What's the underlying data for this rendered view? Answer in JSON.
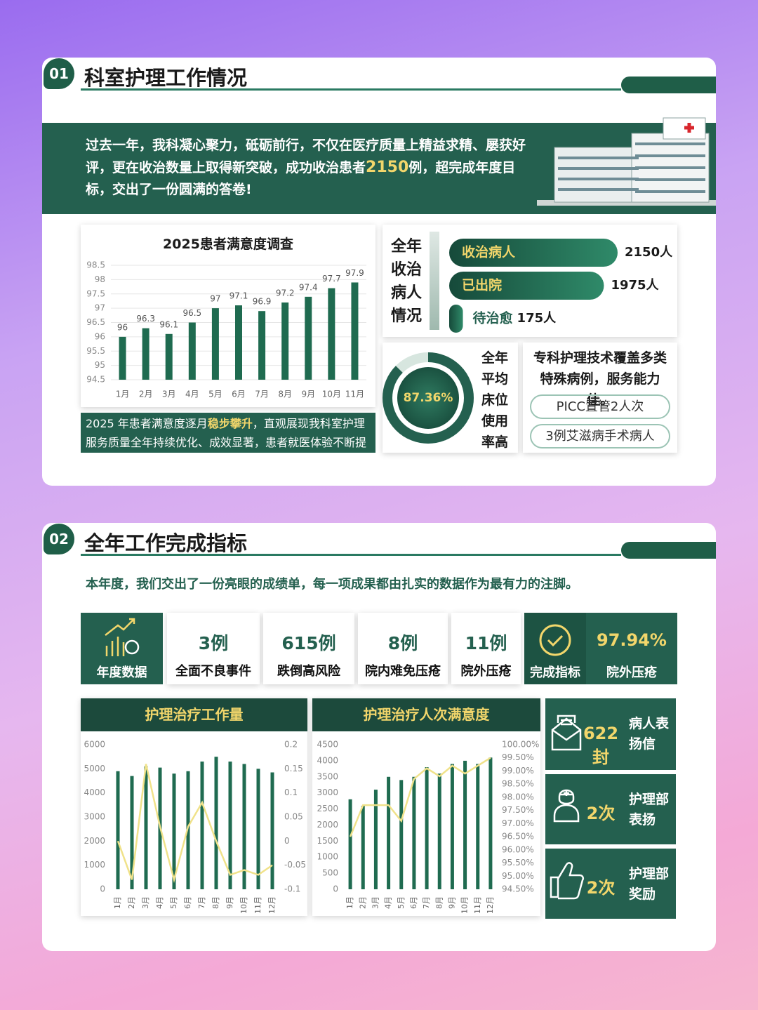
{
  "header1": {
    "badge": "01",
    "title": "科室护理工作情况"
  },
  "intro": {
    "before": "过去一年，我科凝心聚力，砥砺前行，不仅在医疗质量上精益求精、屡获好评，更在收治数量上取得新突破，成功收治患者",
    "highlight": "2150",
    "after": "例，超完成年度目标，交出了一份圆满的答卷!"
  },
  "satisfaction_note": {
    "before": "2025 年患者满意度逐月",
    "highlight": "稳步攀升",
    "after": "，直观展现我科室护理服务质量全年持续优化、成效显著，患者就医体验不断提升。"
  },
  "admissions": {
    "title": "全年收治病人情况",
    "labels": [
      "收治病人",
      "已出院",
      "待治愈"
    ],
    "values": [
      2150,
      1975,
      175
    ],
    "value_labels": [
      "2150人",
      "1975人",
      "175人"
    ]
  },
  "bed_usage": {
    "value": 87.36,
    "value_label": "87.36%",
    "text": "全年平均床位使用率高"
  },
  "specialty": {
    "text": "专科护理技术覆盖多类特殊病例，服务能力佳。",
    "items": [
      "PICC置管2人次",
      "3例艾滋病手术病人"
    ]
  },
  "header2": {
    "badge": "02",
    "title": "全年工作完成指标"
  },
  "summary": "本年度，我们交出了一份亮眼的成绩单，每一项成果都由扎实的数据作为最有力的注脚。",
  "annual": {
    "label": "年度数据",
    "items": [
      {
        "value": "3例",
        "label": "全面不良事件"
      },
      {
        "value": "615例",
        "label": "跌倒高风险"
      },
      {
        "value": "8例",
        "label": "院内难免压疮"
      },
      {
        "value": "11例",
        "label": "院外压疮"
      }
    ]
  },
  "completion": {
    "label": "完成指标",
    "value": "97.94%",
    "item": "院外压疮"
  },
  "awards": [
    {
      "value": "622封",
      "label": "病人表扬信"
    },
    {
      "value": "2次",
      "label": "护理部表扬"
    },
    {
      "value": "2次",
      "label": "护理部奖励"
    }
  ],
  "chart_data": [
    {
      "type": "bar",
      "title": "2025患者满意度调查",
      "categories": [
        "1月",
        "2月",
        "3月",
        "4月",
        "5月",
        "6月",
        "7月",
        "8月",
        "9月",
        "10月",
        "11月"
      ],
      "values": [
        96,
        96.3,
        96.1,
        96.5,
        97,
        97.1,
        96.9,
        97.2,
        97.4,
        97.7,
        97.9
      ],
      "color": "#1f6b50",
      "ylim": [
        94.5,
        98.5
      ],
      "yticks": [
        94.5,
        95,
        95.5,
        96,
        96.5,
        97,
        97.5,
        98,
        98.5
      ],
      "grid": true
    },
    {
      "type": "combo",
      "title": "护理治疗工作量",
      "categories": [
        "1月",
        "2月",
        "3月",
        "4月",
        "5月",
        "6月",
        "7月",
        "8月",
        "9月",
        "10月",
        "11月",
        "12月"
      ],
      "series": [
        {
          "color": "#1f6b50",
          "values": [
            4900,
            4700,
            5100,
            5050,
            4800,
            4900,
            5300,
            5500,
            5300,
            5200,
            5000,
            4850
          ]
        },
        {
          "color": "#f0e28a",
          "axis": "y2",
          "values": [
            0,
            -0.08,
            0.16,
            0.03,
            -0.08,
            0.03,
            0.08,
            0,
            -0.07,
            -0.06,
            -0.07,
            -0.05
          ]
        }
      ],
      "ylim": [
        0,
        6000
      ],
      "yticks": [
        0,
        1000,
        2000,
        3000,
        4000,
        5000,
        6000
      ],
      "y2lim": [
        -0.1,
        0.2
      ],
      "y2ticks": [
        -0.1,
        -0.05,
        0,
        0.05,
        0.1,
        0.15,
        0.2
      ]
    },
    {
      "type": "combo",
      "title": "护理治疗人次满意度",
      "categories": [
        "1月",
        "2月",
        "3月",
        "4月",
        "5月",
        "6月",
        "7月",
        "8月",
        "9月",
        "10月",
        "11月",
        "12月"
      ],
      "series": [
        {
          "color": "#1f6b50",
          "values": [
            2800,
            2600,
            3100,
            3500,
            3400,
            3500,
            3800,
            3600,
            3900,
            4000,
            3900,
            4100
          ]
        },
        {
          "color": "#f0e28a",
          "axis": "y2",
          "values": [
            96.5,
            97.7,
            97.7,
            97.7,
            97.1,
            98.7,
            99.1,
            98.8,
            99.2,
            98.9,
            99.2,
            99.5
          ]
        }
      ],
      "ylim": [
        0,
        4500
      ],
      "yticks": [
        0,
        500,
        1000,
        1500,
        2000,
        2500,
        3000,
        3500,
        4000,
        4500
      ],
      "y2lim": [
        94.5,
        100
      ],
      "y2ticks": [
        {
          "value": 94.5,
          "label": "94.50%"
        },
        {
          "value": 95,
          "label": "95.00%"
        },
        {
          "value": 95.5,
          "label": "95.50%"
        },
        {
          "value": 96,
          "label": "96.00%"
        },
        {
          "value": 96.5,
          "label": "96.50%"
        },
        {
          "value": 97,
          "label": "97.00%"
        },
        {
          "value": 97.5,
          "label": "97.50%"
        },
        {
          "value": 98,
          "label": "98.00%"
        },
        {
          "value": 98.5,
          "label": "98.50%"
        },
        {
          "value": 99,
          "label": "99.00%"
        },
        {
          "value": 99.5,
          "label": "99.50%"
        },
        {
          "value": 100,
          "label": "100.00%"
        }
      ]
    }
  ]
}
